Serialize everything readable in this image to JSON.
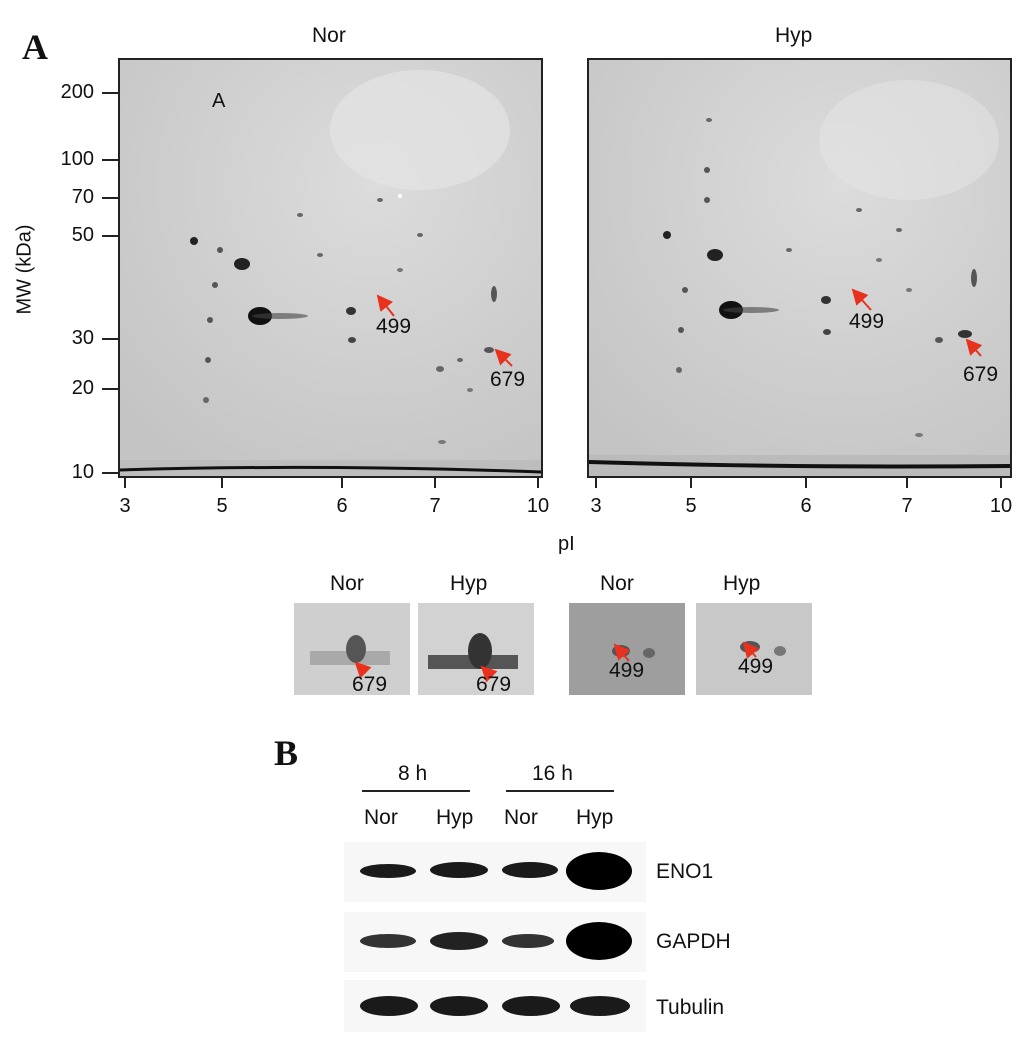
{
  "panel_a": {
    "letter": "A",
    "gel_left": {
      "title": "Nor",
      "corner_label": "A",
      "spot_499": "499",
      "spot_679": "679"
    },
    "gel_right": {
      "title": "Hyp",
      "spot_499": "499",
      "spot_679": "679"
    },
    "y_axis": {
      "label": "MW (kDa)",
      "ticks": [
        "200",
        "100",
        "70",
        "50",
        "30",
        "20",
        "10"
      ]
    },
    "x_axis": {
      "label": "pI",
      "ticks": [
        "3",
        "5",
        "6",
        "7",
        "10"
      ]
    },
    "insets": [
      {
        "title": "Nor",
        "spot": "679"
      },
      {
        "title": "Hyp",
        "spot": "679"
      },
      {
        "title": "Nor",
        "spot": "499"
      },
      {
        "title": "Hyp",
        "spot": "499"
      }
    ]
  },
  "panel_b": {
    "letter": "B",
    "time_groups": [
      "8 h",
      "16 h"
    ],
    "lane_labels": [
      "Nor",
      "Hyp",
      "Nor",
      "Hyp"
    ],
    "rows": [
      {
        "protein": "ENO1",
        "intensities": [
          0.35,
          0.45,
          0.45,
          1.0
        ]
      },
      {
        "protein": "GAPDH",
        "intensities": [
          0.3,
          0.45,
          0.3,
          1.0
        ]
      },
      {
        "protein": "Tubulin",
        "intensities": [
          0.8,
          0.8,
          0.8,
          0.8
        ]
      }
    ]
  },
  "colors": {
    "arrow": "#e8321e",
    "gel_bg": "#c9c9c9",
    "band": "#1a1a1a"
  }
}
